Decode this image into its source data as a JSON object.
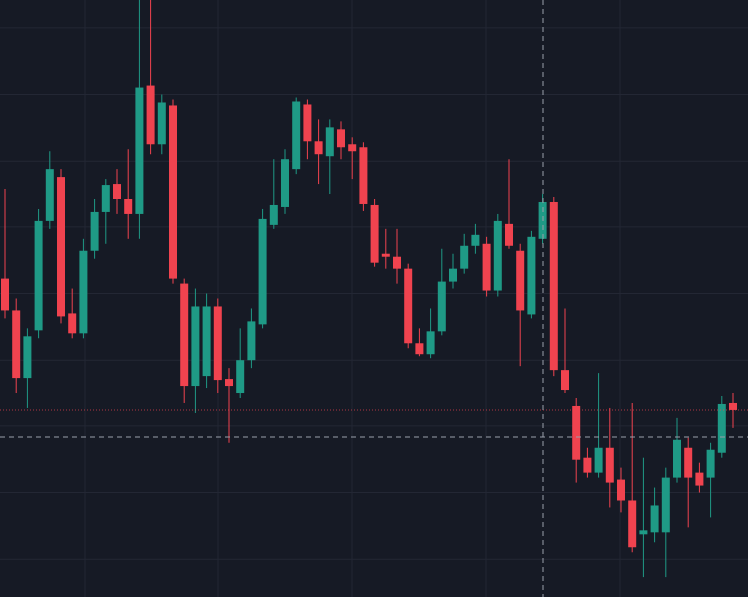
{
  "chart_data": {
    "type": "candlestick",
    "open": [
      320,
      288,
      220,
      268,
      378,
      422,
      285,
      265,
      348,
      387,
      415,
      400,
      385,
      514,
      455,
      494,
      315,
      212,
      222,
      292,
      219,
      205,
      238,
      274,
      374,
      392,
      430,
      495,
      458,
      443,
      470,
      455,
      452,
      394,
      345,
      342,
      330,
      255,
      244,
      267,
      317,
      330,
      353,
      355,
      308,
      375,
      348,
      284,
      360,
      397,
      228,
      192,
      140,
      125,
      150,
      118,
      97,
      63,
      65,
      65,
      120,
      150,
      125,
      120,
      145,
      195
    ],
    "high": [
      410,
      300,
      270,
      390,
      448,
      430,
      310,
      360,
      400,
      420,
      430,
      450,
      600,
      600,
      505,
      500,
      320,
      310,
      305,
      300,
      230,
      270,
      290,
      390,
      440,
      450,
      502,
      500,
      480,
      480,
      478,
      462,
      457,
      400,
      370,
      370,
      335,
      270,
      290,
      350,
      345,
      365,
      375,
      362,
      385,
      440,
      355,
      368,
      405,
      402,
      290,
      200,
      150,
      225,
      190,
      130,
      195,
      140,
      110,
      130,
      180,
      160,
      135,
      155,
      202,
      205
    ],
    "low": [
      280,
      205,
      190,
      260,
      370,
      275,
      260,
      260,
      340,
      355,
      385,
      360,
      360,
      445,
      445,
      315,
      195,
      185,
      210,
      205,
      155,
      200,
      230,
      270,
      370,
      385,
      425,
      440,
      415,
      405,
      440,
      420,
      388,
      332,
      330,
      315,
      250,
      242,
      240,
      263,
      310,
      325,
      345,
      302,
      302,
      350,
      232,
      280,
      355,
      222,
      205,
      115,
      120,
      120,
      90,
      85,
      45,
      20,
      55,
      20,
      115,
      70,
      105,
      80,
      140,
      170
    ],
    "close": [
      288,
      220,
      262,
      378,
      430,
      282,
      265,
      348,
      387,
      414,
      400,
      385,
      512,
      455,
      497,
      320,
      212,
      292,
      292,
      218,
      212,
      238,
      277,
      380,
      394,
      440,
      498,
      458,
      445,
      472,
      452,
      448,
      395,
      336,
      342,
      330,
      255,
      244,
      267,
      317,
      330,
      353,
      364,
      308,
      378,
      353,
      288,
      362,
      397,
      228,
      208,
      138,
      125,
      150,
      115,
      97,
      50,
      67,
      92,
      120,
      158,
      120,
      112,
      148,
      194,
      188
    ],
    "up_color": "#1f9a86",
    "down_color": "#f0434f",
    "ylim": [
      0,
      600
    ],
    "yticks": [
      38,
      105,
      172,
      238,
      305,
      372,
      438,
      505,
      572
    ],
    "grid": true
  }
}
